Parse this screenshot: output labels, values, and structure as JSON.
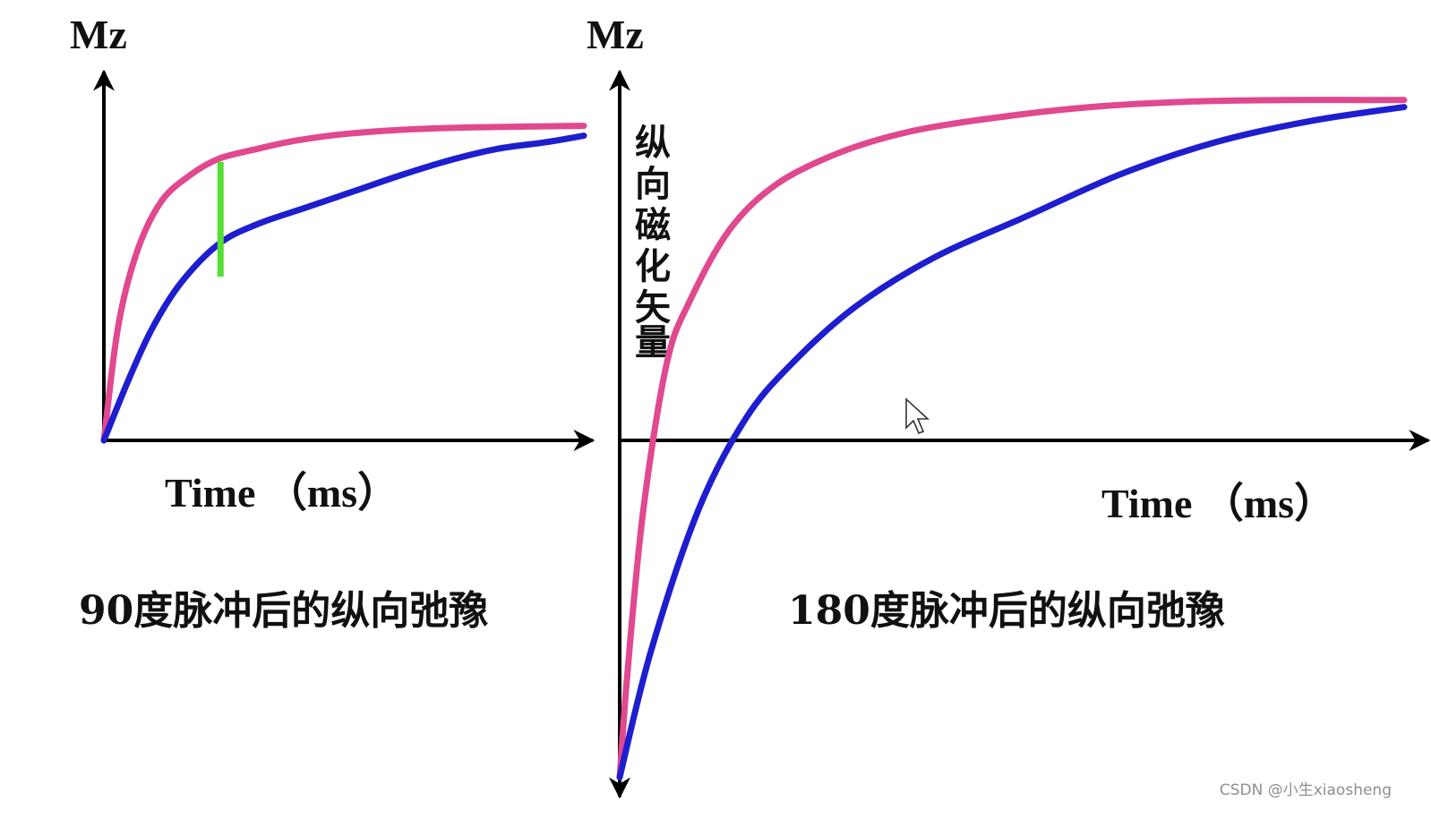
{
  "chart_data": [
    {
      "type": "line",
      "y_label": "Mz",
      "x_label": "Time （ms）",
      "caption": "90度脉冲后的纵向弛豫",
      "series_colors": [
        "#e0488f",
        "#1e1ecf"
      ],
      "marker_color": "#55dd33",
      "ylim": [
        0,
        1
      ],
      "series": [
        {
          "x": [
            0,
            0.03,
            0.07,
            0.12,
            0.18,
            0.24,
            0.32,
            0.4,
            0.5,
            0.62,
            0.75,
            0.88,
            1.0
          ],
          "values": [
            0,
            0.35,
            0.58,
            0.73,
            0.81,
            0.86,
            0.89,
            0.915,
            0.935,
            0.948,
            0.955,
            0.958,
            0.96
          ]
        },
        {
          "x": [
            0,
            0.05,
            0.1,
            0.16,
            0.24,
            0.32,
            0.42,
            0.52,
            0.62,
            0.72,
            0.82,
            0.92,
            1.0
          ],
          "values": [
            0,
            0.18,
            0.34,
            0.48,
            0.6,
            0.66,
            0.71,
            0.76,
            0.81,
            0.855,
            0.89,
            0.91,
            0.93
          ]
        }
      ],
      "marker": {
        "x": 0.243,
        "y_from": 0.5,
        "y_to": 0.85
      }
    },
    {
      "type": "line",
      "y_label": "Mz",
      "y_vertical_label": [
        "纵",
        "向",
        "磁",
        "化",
        "矢",
        "量"
      ],
      "x_label": "Time （ms）",
      "caption": "180度脉冲后的纵向弛豫",
      "series_colors": [
        "#e0488f",
        "#1e1ecf"
      ],
      "ylim": [
        -1,
        1
      ],
      "series": [
        {
          "x": [
            0,
            0.01,
            0.03,
            0.06,
            0.09,
            0.14,
            0.2,
            0.28,
            0.37,
            0.48,
            0.6,
            0.72,
            0.85,
            1.0
          ],
          "values": [
            -0.96,
            -0.66,
            -0.2,
            0.22,
            0.4,
            0.6,
            0.73,
            0.82,
            0.88,
            0.92,
            0.95,
            0.965,
            0.97,
            0.97
          ]
        },
        {
          "x": [
            0,
            0.04,
            0.1,
            0.16,
            0.22,
            0.3,
            0.4,
            0.52,
            0.64,
            0.76,
            0.88,
            1.0
          ],
          "values": [
            -0.96,
            -0.6,
            -0.2,
            0.06,
            0.22,
            0.38,
            0.52,
            0.64,
            0.76,
            0.85,
            0.91,
            0.95
          ]
        }
      ]
    }
  ],
  "watermark": "CSDN @小生xiaosheng"
}
